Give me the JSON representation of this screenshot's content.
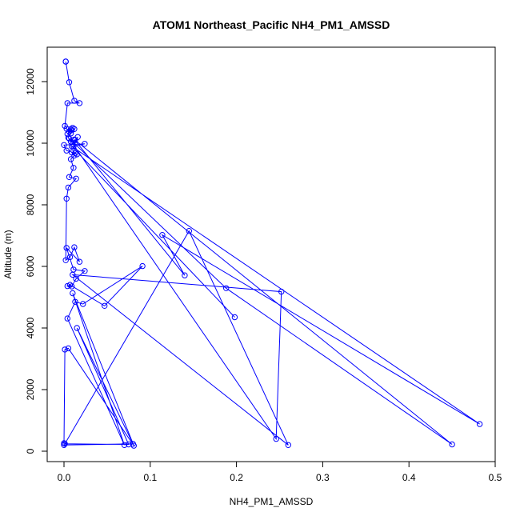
{
  "chart_data": {
    "type": "line",
    "title": "ATOM1 Northeast_Pacific NH4_PM1_AMSSD",
    "xlabel": "NH4_PM1_AMSSD",
    "ylabel": "Altitude (m)",
    "xlim": [
      0,
      0.5
    ],
    "ylim": [
      0,
      12000
    ],
    "xticks": [
      "0.0",
      "0.1",
      "0.2",
      "0.3",
      "0.4",
      "0.5"
    ],
    "yticks": [
      "0",
      "2000",
      "4000",
      "6000",
      "8000",
      "10000",
      "12000"
    ],
    "grid": false,
    "legend": false,
    "color": "#0000ff",
    "markers": "open-circle",
    "series": [
      {
        "x": [
          0.002,
          0.002,
          0.006,
          0.012,
          0.018,
          0.004,
          0.001,
          0.003,
          0.006,
          0.008,
          0.009,
          0.004,
          0.01,
          0.012,
          0.008,
          0.005,
          0.008,
          0.013,
          0.01,
          0.016,
          0.011,
          0.024,
          0.0,
          0.003,
          0.013,
          0.015,
          0.009,
          0.012,
          0.008,
          0.011,
          0.006,
          0.014,
          0.005,
          0.003,
          0.002,
          0.007,
          0.012,
          0.018,
          0.003,
          0.011,
          0.024,
          0.014,
          0.009,
          0.004,
          0.007,
          0.047,
          0.091,
          0.022,
          0.013,
          0.004,
          0.07,
          0.01,
          0.081,
          0.005,
          0.001,
          0.0,
          0.0,
          0.08,
          0.015,
          0.075,
          0.001,
          0.145,
          0.26,
          0.01,
          0.252,
          0.246,
          0.006,
          0.188,
          0.45,
          0.012,
          0.14,
          0.114,
          0.482,
          0.009,
          0.198
        ],
        "y": [
          12650,
          12650,
          11980,
          11380,
          11300,
          11300,
          10560,
          10470,
          10380,
          10460,
          10420,
          10300,
          10500,
          10460,
          10320,
          10180,
          10050,
          10100,
          9980,
          10200,
          9900,
          9980,
          9940,
          9760,
          9680,
          9640,
          9700,
          9600,
          9480,
          9200,
          8900,
          8850,
          8560,
          8200,
          6200,
          6300,
          6620,
          6150,
          6600,
          5900,
          5850,
          5600,
          5350,
          5360,
          5400,
          4720,
          6010,
          4780,
          4850,
          4310,
          200,
          5130,
          180,
          3340,
          3300,
          260,
          200,
          240,
          4000,
          220,
          240,
          7150,
          200,
          5730,
          5180,
          400,
          10150,
          5290,
          220,
          10120,
          5710,
          7020,
          880,
          9900,
          4350
        ]
      }
    ]
  }
}
